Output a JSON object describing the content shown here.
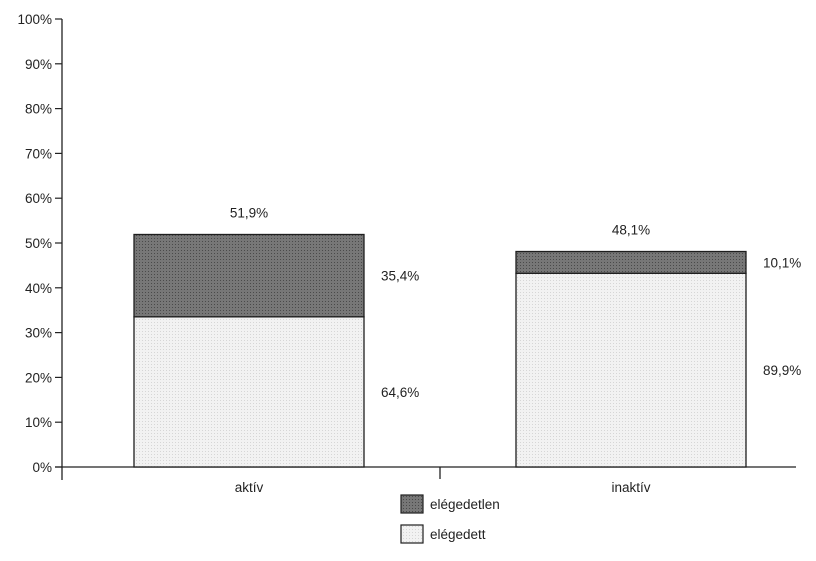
{
  "chart_data": {
    "type": "bar",
    "stacked": true,
    "categories": [
      "aktív",
      "inaktív"
    ],
    "totals": [
      "51,9%",
      "48,1%"
    ],
    "series": [
      {
        "name": "elégedett",
        "share": [
          64.6,
          89.9
        ],
        "labels": [
          "64,6%",
          "89,9%"
        ],
        "color": "#efefef"
      },
      {
        "name": "elégedetlen",
        "share": [
          35.4,
          10.1
        ],
        "labels": [
          "35,4%",
          "10,1%"
        ],
        "color": "#6f6f6f"
      }
    ],
    "total_values": [
      51.9,
      48.1
    ],
    "y_ticks": [
      "0%",
      "10%",
      "20%",
      "30%",
      "40%",
      "50%",
      "60%",
      "70%",
      "80%",
      "90%",
      "100%"
    ],
    "ylim": [
      0,
      100
    ],
    "grid": false,
    "legend_position": "bottom-center",
    "legend_order": [
      "elégedetlen",
      "elégedett"
    ]
  }
}
